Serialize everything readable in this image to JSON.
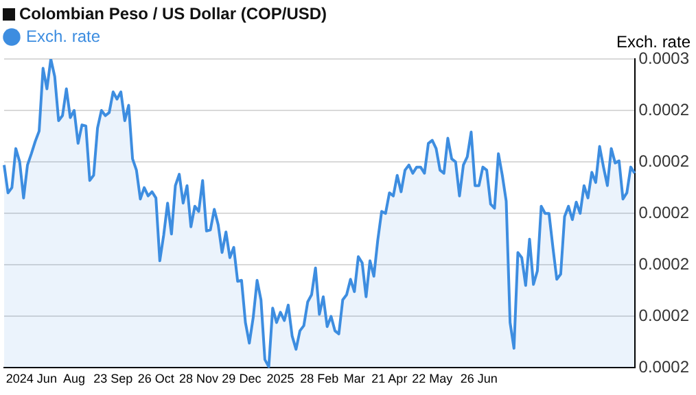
{
  "chart_data": {
    "type": "area",
    "title": "Colombian Peso / US Dollar (COP/USD)",
    "ylabel": "Exch. rate",
    "legend": "top left",
    "grid": "y",
    "marker": "none",
    "categories": [
      null,
      null,
      null,
      null,
      "2024",
      null,
      null,
      null,
      null,
      null,
      null,
      "Jun",
      null,
      null,
      null,
      null,
      null,
      null,
      "Aug",
      null,
      null,
      null,
      null,
      null,
      null,
      null,
      null,
      null,
      "23 Sep",
      null,
      null,
      null,
      null,
      null,
      null,
      null,
      null,
      null,
      null,
      "26 Oct",
      null,
      null,
      null,
      null,
      null,
      null,
      null,
      null,
      null,
      null,
      "28 Nov",
      null,
      null,
      null,
      null,
      null,
      null,
      null,
      null,
      null,
      null,
      "29 Dec",
      null,
      null,
      null,
      null,
      null,
      null,
      null,
      null,
      null,
      "2025",
      null,
      null,
      null,
      null,
      null,
      null,
      null,
      null,
      null,
      "28 Feb",
      null,
      null,
      null,
      null,
      null,
      null,
      null,
      null,
      "Mar",
      null,
      null,
      null,
      null,
      null,
      null,
      null,
      null,
      "21 Apr",
      null,
      null,
      null,
      null,
      null,
      null,
      null,
      null,
      null,
      null,
      "22 May",
      null,
      null,
      null,
      null,
      null,
      null,
      null,
      null,
      null,
      null,
      null,
      "26 Jun",
      null,
      null,
      null,
      null,
      null,
      null,
      null,
      null,
      null,
      null,
      null,
      null,
      null,
      null,
      null,
      null,
      null,
      null,
      null,
      null,
      null,
      null,
      null,
      null,
      null,
      null,
      null,
      null,
      null,
      null,
      null,
      null,
      null,
      null,
      null,
      null,
      null,
      null,
      null,
      null
    ],
    "ylim": [
      0.00022,
      0.00025
    ],
    "yticks": [
      {
        "value": 0.00022,
        "label": "0.0002"
      },
      {
        "value": 0.000225,
        "label": "0.0002"
      },
      {
        "value": 0.00023,
        "label": "0.0002"
      },
      {
        "value": 0.000235,
        "label": "0.0002"
      },
      {
        "value": 0.00024,
        "label": "0.0002"
      },
      {
        "value": 0.000245,
        "label": "0.0002"
      },
      {
        "value": 0.00025,
        "label": "0.0003"
      }
    ],
    "series": [
      {
        "name": "Exch. rate",
        "color": "#3d8de0",
        "values": [
          0.0002397,
          0.000237,
          0.0002375,
          0.0002413,
          0.00024,
          0.0002365,
          0.0002397,
          0.0002408,
          0.000242,
          0.000243,
          0.0002491,
          0.0002471,
          0.00025,
          0.0002483,
          0.000244,
          0.0002445,
          0.0002471,
          0.0002443,
          0.000245,
          0.0002418,
          0.0002436,
          0.0002435,
          0.0002382,
          0.0002387,
          0.0002433,
          0.000245,
          0.0002445,
          0.0002448,
          0.0002468,
          0.0002461,
          0.0002468,
          0.000244,
          0.0002455,
          0.0002403,
          0.0002392,
          0.0002364,
          0.0002375,
          0.0002367,
          0.0002371,
          0.0002365,
          0.0002304,
          0.0002329,
          0.000236,
          0.000233,
          0.0002377,
          0.0002388,
          0.000236,
          0.0002377,
          0.0002337,
          0.0002357,
          0.0002352,
          0.0002382,
          0.0002333,
          0.0002334,
          0.0002354,
          0.0002339,
          0.0002312,
          0.0002332,
          0.0002307,
          0.0002317,
          0.0002284,
          0.0002285,
          0.0002244,
          0.0002224,
          0.0002249,
          0.0002285,
          0.0002266,
          0.0002208,
          0.0002201,
          0.0002258,
          0.0002244,
          0.0002254,
          0.0002246,
          0.0002261,
          0.0002231,
          0.0002218,
          0.0002236,
          0.0002241,
          0.0002264,
          0.0002271,
          0.0002297,
          0.0002252,
          0.0002269,
          0.000224,
          0.000225,
          0.0002236,
          0.0002233,
          0.0002266,
          0.0002271,
          0.0002286,
          0.0002274,
          0.0002308,
          0.0002302,
          0.0002269,
          0.0002304,
          0.0002289,
          0.0002324,
          0.0002352,
          0.000235,
          0.000237,
          0.0002367,
          0.0002387,
          0.0002371,
          0.0002392,
          0.0002397,
          0.0002389,
          0.0002395,
          0.0002395,
          0.0002389,
          0.0002418,
          0.0002421,
          0.0002413,
          0.0002392,
          0.0002389,
          0.0002423,
          0.0002403,
          0.00024,
          0.0002367,
          0.0002397,
          0.0002405,
          0.0002429,
          0.0002377,
          0.0002377,
          0.0002395,
          0.0002392,
          0.0002359,
          0.0002355,
          0.0002408,
          0.0002387,
          0.0002362,
          0.0002244,
          0.0002219,
          0.0002312,
          0.0002307,
          0.000228,
          0.0002325,
          0.0002281,
          0.0002294,
          0.0002357,
          0.000235,
          0.000235,
          0.0002317,
          0.0002286,
          0.0002291,
          0.0002347,
          0.0002357,
          0.0002344,
          0.0002361,
          0.000235,
          0.0002377,
          0.0002365,
          0.000239,
          0.000238,
          0.0002415,
          0.0002395,
          0.0002377,
          0.0002413,
          0.0002399,
          0.0002401,
          0.0002364,
          0.000237,
          0.0002395,
          0.0002389
        ]
      }
    ]
  }
}
